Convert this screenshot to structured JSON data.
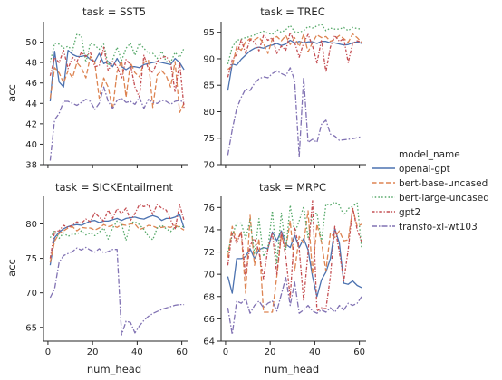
{
  "chart_data": {
    "type": "line",
    "xlabel": "num_head",
    "ylabel": "acc",
    "legend_title": "model_name",
    "legend_position": "right",
    "series_names": [
      "openai-gpt",
      "bert-base-uncased",
      "bert-large-uncased",
      "gpt2",
      "transfo-xl-wt103"
    ],
    "colors": [
      "#4c72b0",
      "#dd8452",
      "#55a868",
      "#c44e52",
      "#8172b3"
    ],
    "x": [
      1,
      3,
      5,
      7,
      9,
      11,
      13,
      15,
      17,
      19,
      21,
      23,
      25,
      27,
      29,
      31,
      33,
      35,
      37,
      39,
      41,
      43,
      45,
      47,
      49,
      51,
      53,
      55,
      57,
      59,
      61
    ],
    "x_ticks": [
      0,
      20,
      40,
      60
    ],
    "panels": [
      {
        "title": "task = SST5",
        "ylim": [
          38,
          52
        ],
        "yticks": [
          38,
          40,
          42,
          44,
          46,
          48,
          50
        ],
        "series": [
          {
            "name": "openai-gpt",
            "values": [
              44.2,
              49.1,
              46.1,
              45.6,
              49.2,
              48.8,
              48.6,
              48.6,
              48.7,
              48.3,
              48.1,
              48.9,
              47.9,
              48.1,
              47.6,
              48.4,
              47.6,
              47.3,
              47.6,
              47.6,
              47.5,
              47.8,
              47.9,
              48.0,
              48.1,
              48.0,
              47.9,
              47.8,
              48.4,
              48.0,
              47.3
            ]
          },
          {
            "name": "bert-base-uncased",
            "values": [
              44.5,
              47.5,
              47.0,
              46.0,
              47.2,
              46.5,
              48.0,
              47.5,
              46.5,
              48.6,
              48.0,
              44.5,
              46.5,
              45.6,
              43.4,
              47.1,
              48.2,
              44.6,
              48.0,
              47.0,
              46.6,
              48.0,
              48.3,
              43.6,
              46.8,
              47.2,
              46.7,
              45.6,
              48.1,
              43.1,
              44.0
            ]
          },
          {
            "name": "bert-large-uncased",
            "values": [
              48.0,
              49.9,
              49.8,
              49.4,
              49.6,
              49.2,
              50.8,
              50.6,
              48.0,
              49.9,
              49.7,
              49.3,
              49.8,
              47.7,
              48.3,
              49.5,
              48.2,
              49.4,
              49.9,
              48.7,
              49.9,
              49.4,
              48.9,
              48.9,
              48.4,
              49.1,
              48.1,
              48.0,
              49.0,
              48.5,
              49.4
            ]
          },
          {
            "name": "gpt2",
            "values": [
              46.7,
              48.5,
              48.0,
              49.2,
              47.4,
              48.5,
              48.1,
              49.0,
              48.6,
              49.0,
              47.6,
              47.7,
              49.5,
              47.2,
              48.1,
              47.6,
              46.5,
              48.3,
              47.8,
              45.6,
              44.6,
              48.7,
              47.4,
              47.0,
              48.1,
              48.5,
              48.6,
              48.0,
              45.1,
              48.1,
              43.5
            ]
          },
          {
            "name": "transfo-xl-wt103",
            "values": [
              38.4,
              42.4,
              43.0,
              44.2,
              44.2,
              44.0,
              43.8,
              44.1,
              44.4,
              44.2,
              43.4,
              44.0,
              45.6,
              44.2,
              43.5,
              44.3,
              44.5,
              44.1,
              44.2,
              43.9,
              44.6,
              43.5,
              44.4,
              44.1,
              44.0,
              44.3,
              44.2,
              43.9,
              44.2,
              44.3,
              44.1
            ]
          }
        ]
      },
      {
        "title": "task = TREC",
        "ylim": [
          70,
          97
        ],
        "yticks": [
          70,
          75,
          80,
          85,
          90,
          95
        ],
        "series": [
          {
            "name": "openai-gpt",
            "values": [
              84.0,
              89.0,
              88.8,
              89.9,
              90.7,
              91.5,
              92.0,
              92.2,
              92.0,
              92.4,
              92.6,
              92.9,
              92.5,
              92.8,
              93.5,
              93.0,
              93.3,
              93.0,
              93.2,
              93.2,
              92.9,
              93.3,
              93.3,
              93.0,
              93.0,
              92.8,
              92.6,
              92.7,
              93.0,
              93.2,
              92.9
            ]
          },
          {
            "name": "bert-base-uncased",
            "values": [
              88.0,
              88.6,
              92.3,
              91.6,
              93.2,
              93.8,
              93.6,
              94.1,
              92.9,
              91.0,
              93.8,
              94.2,
              93.4,
              94.4,
              92.7,
              94.0,
              92.3,
              94.6,
              91.3,
              93.1,
              94.5,
              94.0,
              94.2,
              93.3,
              93.7,
              94.4,
              93.8,
              93.1,
              94.7,
              94.0,
              93.1
            ]
          },
          {
            "name": "bert-large-uncased",
            "values": [
              89.0,
              92.2,
              93.5,
              93.7,
              94.0,
              94.2,
              94.5,
              94.9,
              95.2,
              94.8,
              94.6,
              95.5,
              95.0,
              95.5,
              96.3,
              95.1,
              95.0,
              95.3,
              96.1,
              95.8,
              96.2,
              96.5,
              95.3,
              95.8,
              95.6,
              95.6,
              95.9,
              95.3,
              95.9,
              95.7,
              95.6
            ]
          },
          {
            "name": "gpt2",
            "values": [
              86.5,
              89.8,
              90.8,
              93.6,
              91.0,
              93.6,
              93.2,
              91.5,
              94.4,
              93.5,
              94.0,
              91.0,
              92.4,
              91.6,
              95.0,
              93.1,
              90.3,
              93.0,
              94.6,
              92.4,
              89.2,
              93.6,
              87.5,
              92.2,
              94.4,
              93.3,
              93.8,
              89.3,
              92.9,
              93.4,
              93.1
            ]
          },
          {
            "name": "transfo-xl-wt103",
            "values": [
              71.8,
              76.6,
              80.6,
              82.7,
              84.3,
              84.0,
              85.4,
              86.2,
              86.6,
              86.4,
              87.2,
              87.7,
              87.2,
              86.8,
              88.3,
              85.9,
              71.5,
              86.5,
              74.2,
              74.8,
              74.2,
              77.6,
              78.4,
              75.8,
              75.4,
              74.6,
              74.7,
              74.8,
              74.9,
              75.1,
              75.3
            ]
          }
        ]
      },
      {
        "title": "task = SICKEntailment",
        "ylim": [
          63,
          84
        ],
        "yticks": [
          65,
          70,
          75,
          80
        ],
        "series": [
          {
            "name": "openai-gpt",
            "values": [
              74.0,
              78.0,
              78.8,
              79.3,
              79.6,
              79.8,
              79.9,
              79.8,
              80.1,
              80.4,
              80.5,
              80.2,
              80.4,
              80.4,
              80.6,
              80.8,
              80.5,
              80.8,
              80.9,
              81.0,
              80.8,
              80.7,
              81.0,
              81.2,
              81.0,
              80.5,
              80.8,
              80.8,
              81.0,
              81.4,
              79.4
            ]
          },
          {
            "name": "bert-base-uncased",
            "values": [
              74.4,
              77.5,
              78.6,
              79.0,
              79.4,
              79.6,
              79.0,
              79.5,
              79.4,
              79.4,
              79.1,
              79.4,
              79.9,
              79.6,
              79.8,
              79.5,
              79.9,
              79.8,
              80.0,
              80.0,
              79.2,
              79.4,
              79.8,
              79.7,
              79.4,
              79.5,
              79.6,
              79.5,
              79.8,
              79.5,
              79.1
            ]
          },
          {
            "name": "bert-large-uncased",
            "values": [
              78.0,
              79.0,
              77.9,
              78.7,
              78.2,
              78.5,
              78.5,
              79.0,
              78.4,
              78.7,
              78.3,
              78.8,
              79.4,
              77.8,
              79.4,
              80.4,
              80.0,
              77.6,
              80.2,
              80.3,
              79.9,
              79.2,
              78.2,
              77.7,
              79.4,
              79.8,
              79.3,
              78.9,
              79.5,
              79.6,
              79.6
            ]
          },
          {
            "name": "gpt2",
            "values": [
              75.0,
              78.9,
              79.0,
              79.8,
              79.5,
              79.8,
              80.3,
              80.1,
              80.7,
              80.3,
              81.6,
              81.0,
              80.4,
              82.0,
              80.8,
              82.2,
              81.5,
              82.3,
              80.5,
              81.5,
              82.8,
              82.5,
              82.8,
              81.4,
              82.8,
              82.3,
              82.0,
              80.6,
              79.2,
              82.8,
              80.5
            ]
          },
          {
            "name": "transfo-xl-wt103",
            "values": [
              69.3,
              70.6,
              74.4,
              75.4,
              75.7,
              76.0,
              76.5,
              76.2,
              76.6,
              76.2,
              75.9,
              76.4,
              75.8,
              76.0,
              76.3,
              76.3,
              63.9,
              65.9,
              65.7,
              64.2,
              65.2,
              66.0,
              66.6,
              67.0,
              67.3,
              67.6,
              67.8,
              68.0,
              68.2,
              68.3,
              68.3
            ]
          }
        ]
      },
      {
        "title": "task = MRPC",
        "ylim": [
          64,
          77
        ],
        "yticks": [
          64,
          66,
          68,
          70,
          72,
          74,
          76
        ],
        "series": [
          {
            "name": "openai-gpt",
            "values": [
              69.8,
              68.3,
              71.4,
              71.4,
              71.6,
              72.3,
              71.4,
              72.2,
              72.4,
              72.3,
              73.8,
              73.0,
              73.9,
              72.7,
              72.4,
              73.5,
              72.4,
              73.2,
              72.2,
              69.8,
              68.0,
              69.5,
              70.2,
              71.4,
              74.1,
              72.8,
              69.2,
              69.1,
              69.4,
              69.0,
              68.8
            ]
          },
          {
            "name": "bert-base-uncased",
            "values": [
              71.5,
              74.3,
              73.0,
              73.8,
              68.3,
              75.3,
              70.8,
              73.2,
              66.6,
              66.6,
              66.6,
              69.8,
              73.5,
              72.3,
              74.8,
              70.3,
              73.4,
              72.8,
              75.7,
              70.0,
              74.5,
              72.9,
              70.3,
              73.7,
              73.3,
              73.9,
              73.0,
              73.1,
              75.9,
              74.3,
              74.5
            ]
          },
          {
            "name": "bert-large-uncased",
            "values": [
              72.0,
              73.5,
              74.6,
              74.6,
              73.2,
              74.9,
              71.8,
              75.0,
              71.6,
              72.4,
              75.7,
              71.0,
              75.5,
              72.2,
              76.2,
              73.7,
              74.8,
              76.1,
              73.3,
              75.4,
              75.5,
              72.9,
              76.3,
              76.2,
              76.5,
              76.2,
              75.3,
              75.9,
              76.1,
              76.4,
              72.3
            ]
          },
          {
            "name": "gpt2",
            "values": [
              70.8,
              73.8,
              72.8,
              73.8,
              69.8,
              72.6,
              73.2,
              72.0,
              69.6,
              72.3,
              73.7,
              70.0,
              73.8,
              71.6,
              67.9,
              74.2,
              72.3,
              67.6,
              72.0,
              76.6,
              66.7,
              67.0,
              66.9,
              69.8,
              74.3,
              72.0,
              69.4,
              72.2,
              76.0,
              74.0,
              72.9
            ]
          },
          {
            "name": "transfo-xl-wt103",
            "values": [
              67.0,
              64.6,
              67.6,
              67.4,
              67.8,
              66.5,
              67.2,
              67.6,
              67.0,
              67.4,
              67.6,
              66.7,
              68.2,
              69.7,
              67.2,
              69.3,
              66.5,
              66.8,
              67.2,
              66.7,
              66.5,
              66.8,
              66.6,
              67.0,
              66.6,
              67.2,
              66.8,
              67.4,
              67.2,
              67.4,
              68.0
            ]
          }
        ]
      }
    ]
  }
}
